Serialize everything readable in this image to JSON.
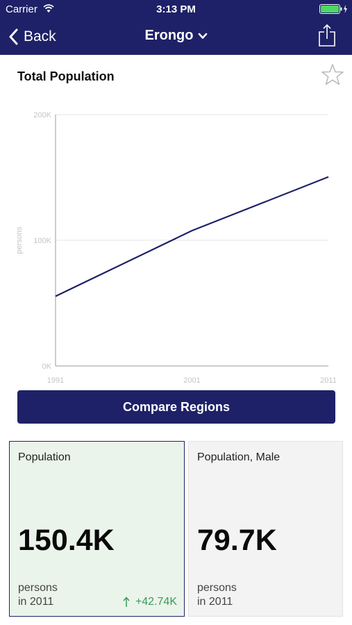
{
  "status_bar": {
    "carrier": "Carrier",
    "time": "3:13 PM",
    "wifi_icon": "wifi-icon",
    "battery_icon": "battery-icon"
  },
  "nav": {
    "back_label": "Back",
    "title": "Erongo",
    "title_icon": "chevron-down-icon",
    "share_icon": "share-icon"
  },
  "card": {
    "title": "Total Population",
    "favorite_icon": "star-icon",
    "compare_label": "Compare Regions"
  },
  "colors": {
    "navy": "#1e2167",
    "tile_highlight": "#eaf4ea",
    "tile_plain": "#f3f3f3",
    "positive": "#3a9a5a"
  },
  "chart_data": {
    "type": "line",
    "title": "",
    "xlabel": "",
    "ylabel": "persons",
    "x": [
      1991,
      2001,
      2011
    ],
    "x_tick_labels": [
      "1991",
      "2001",
      "2011"
    ],
    "y_tick_labels": [
      "0K",
      "100K",
      "200K"
    ],
    "ylim": [
      0,
      200000
    ],
    "grid": true,
    "series": [
      {
        "values": [
          55470,
          107660,
          150400
        ],
        "color": "#1e2167"
      }
    ]
  },
  "tiles": [
    {
      "label": "Population",
      "value": "150.4K",
      "unit": "persons",
      "year": "in 2011",
      "change": "+42.74K",
      "change_icon": "arrow-up-icon"
    },
    {
      "label": "Population, Male",
      "value": "79.7K",
      "unit": "persons",
      "year": "in 2011"
    }
  ]
}
